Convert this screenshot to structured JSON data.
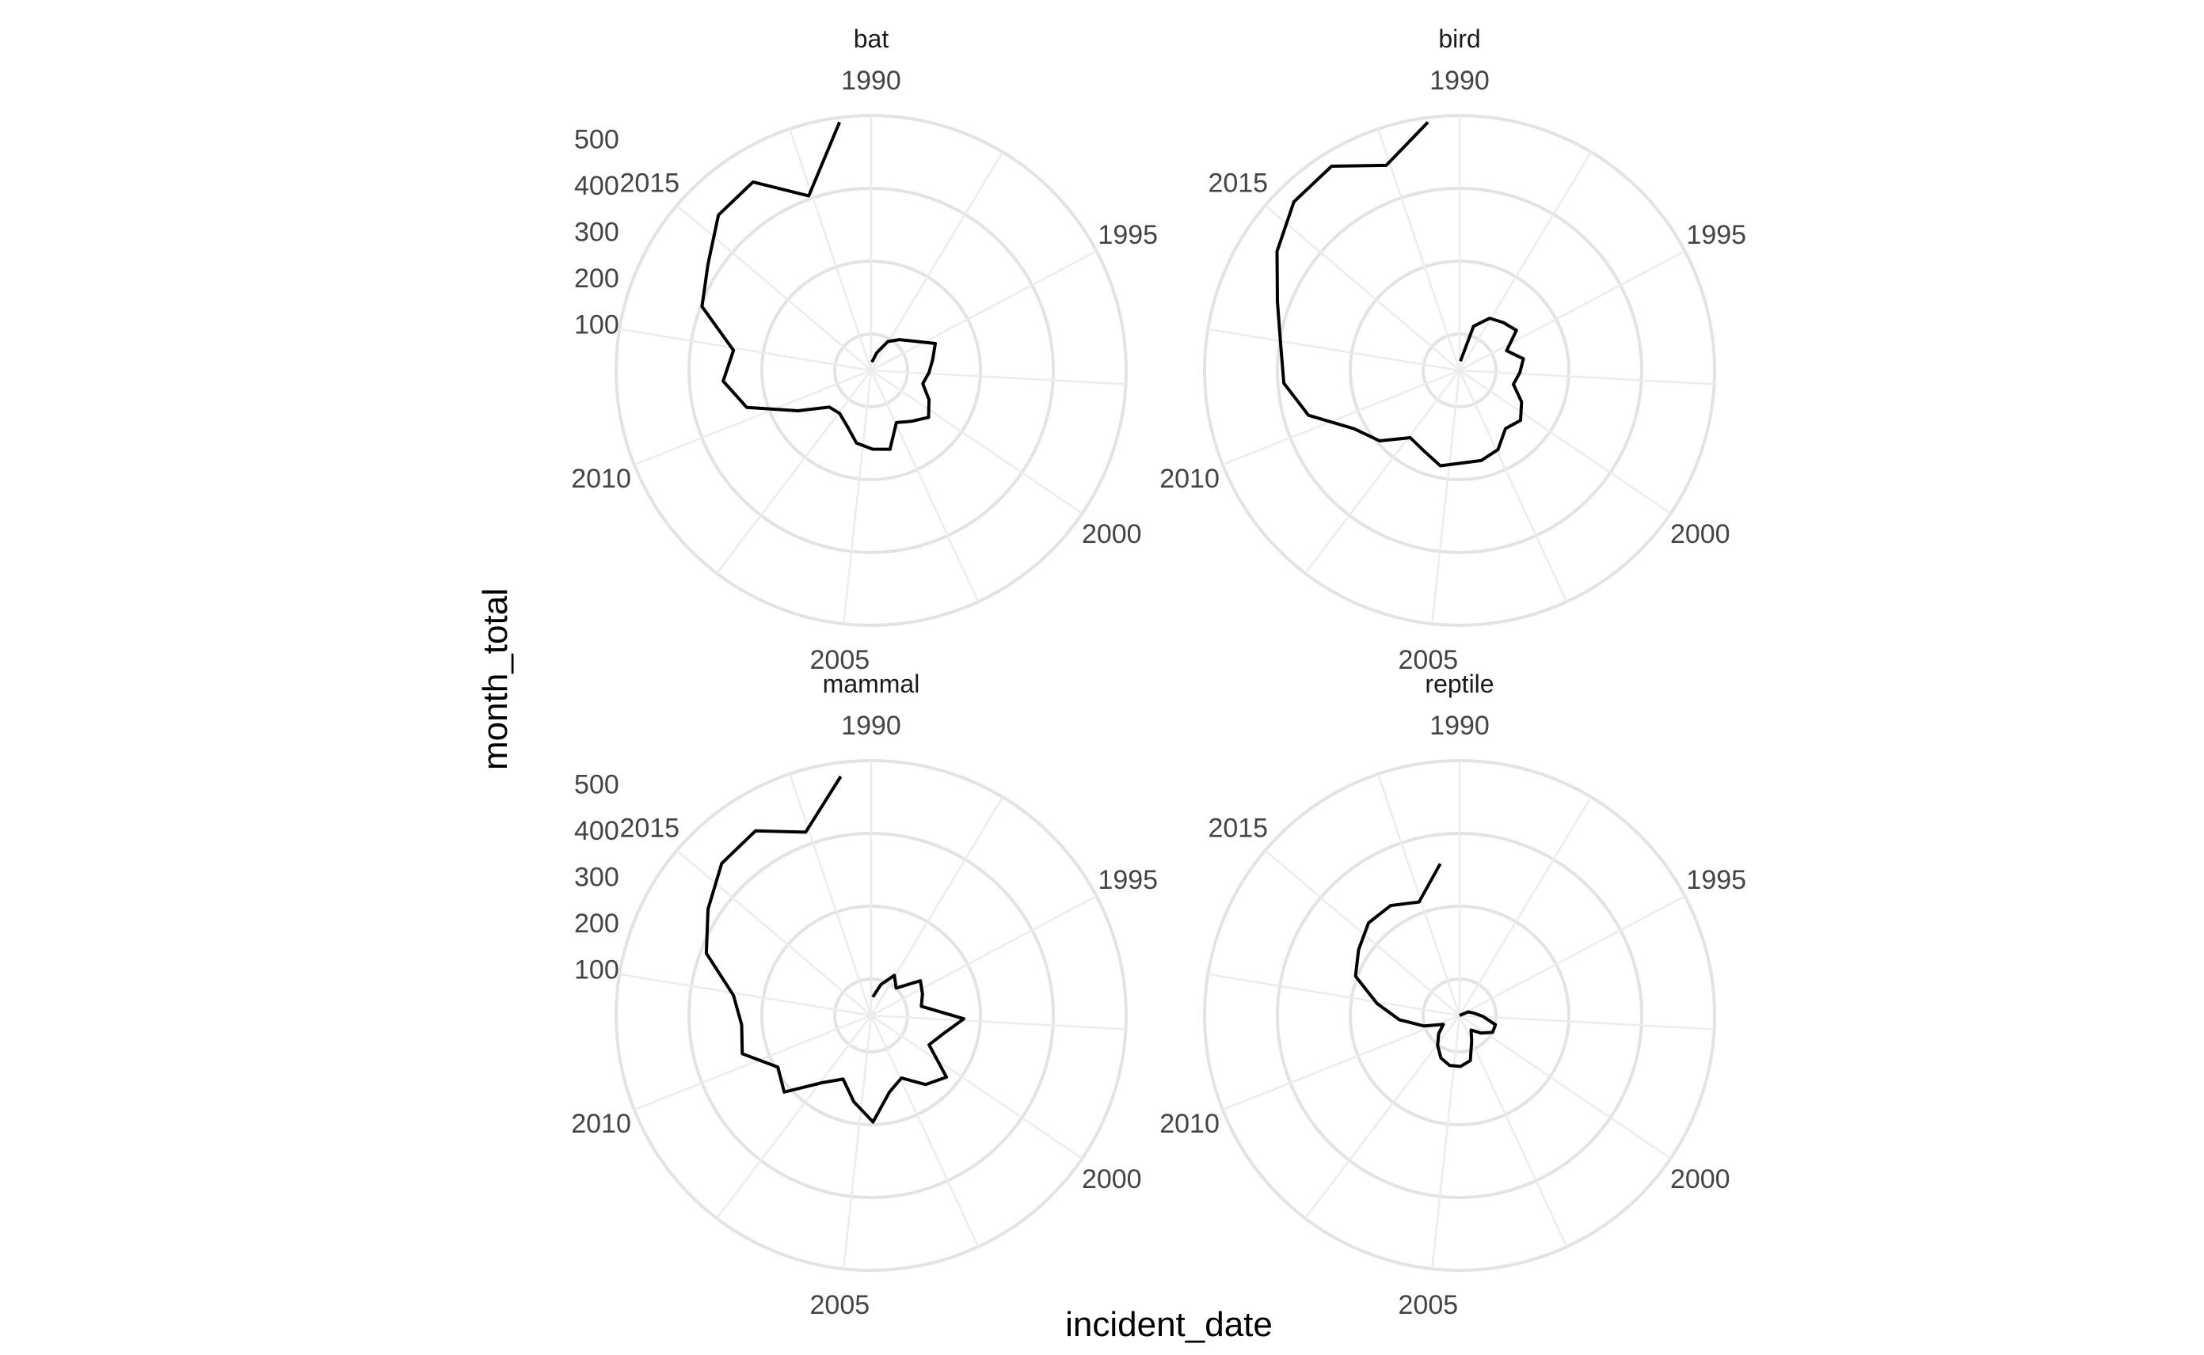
{
  "chart_data": {
    "type": "line",
    "coord": "polar",
    "xlabel": "incident_date",
    "ylabel": "month_total",
    "x_ticks": [
      "1990",
      "1995",
      "2000",
      "2005",
      "2010",
      "2015"
    ],
    "y_ticks": [
      "100",
      "200",
      "300",
      "400",
      "500"
    ],
    "ylim": [
      0,
      550
    ],
    "xlim": [
      "1990-01",
      "2018-12"
    ],
    "grid": true,
    "panels": [
      {
        "name": "bat",
        "x": [
          "1990-06",
          "1991-06",
          "1992-06",
          "1993-06",
          "1994-06",
          "1995-06",
          "1996-06",
          "1997-06",
          "1998-06",
          "1999-06",
          "2000-06",
          "2001-06",
          "2002-06",
          "2003-06",
          "2004-06",
          "2005-06",
          "2006-06",
          "2007-06",
          "2008-06",
          "2009-06",
          "2010-06",
          "2011-06",
          "2012-06",
          "2013-06",
          "2014-06",
          "2015-06",
          "2016-06",
          "2017-06",
          "2018-06"
        ],
        "values": [
          18,
          40,
          72,
          90,
          110,
          150,
          135,
          125,
          115,
          140,
          160,
          140,
          125,
          175,
          170,
          160,
          130,
          115,
          120,
          180,
          280,
          320,
          300,
          390,
          420,
          470,
          480,
          400,
          540
        ]
      },
      {
        "name": "bird",
        "x": [
          "1990-06",
          "1991-06",
          "1992-06",
          "1993-06",
          "1994-06",
          "1995-06",
          "1996-06",
          "1997-06",
          "1998-06",
          "1999-06",
          "2000-06",
          "2001-06",
          "2002-06",
          "2003-06",
          "2004-06",
          "2005-06",
          "2006-06",
          "2007-06",
          "2008-06",
          "2009-06",
          "2010-06",
          "2011-06",
          "2012-06",
          "2013-06",
          "2014-06",
          "2015-06",
          "2016-06",
          "2017-06",
          "2018-06"
        ],
        "values": [
          20,
          100,
          130,
          140,
          150,
          110,
          140,
          130,
          120,
          150,
          170,
          160,
          190,
          200,
          200,
          210,
          190,
          180,
          230,
          260,
          340,
          380,
          390,
          420,
          470,
          510,
          520,
          470,
          540
        ]
      },
      {
        "name": "mammal",
        "x": [
          "1990-06",
          "1991-06",
          "1992-06",
          "1993-06",
          "1994-06",
          "1995-06",
          "1996-06",
          "1997-06",
          "1998-06",
          "1999-06",
          "2000-06",
          "2001-06",
          "2002-06",
          "2003-06",
          "2004-06",
          "2005-06",
          "2006-06",
          "2007-06",
          "2008-06",
          "2009-06",
          "2010-06",
          "2011-06",
          "2012-06",
          "2013-06",
          "2014-06",
          "2015-06",
          "2016-06",
          "2017-06",
          "2018-06"
        ],
        "values": [
          40,
          70,
          100,
          80,
          130,
          120,
          110,
          200,
          160,
          140,
          210,
          190,
          150,
          170,
          230,
          190,
          150,
          180,
          250,
          230,
          290,
          280,
          300,
          380,
          420,
          460,
          470,
          420,
          520
        ]
      },
      {
        "name": "reptile",
        "x": [
          "1990-06",
          "1991-06",
          "1992-06",
          "1993-06",
          "1994-06",
          "1995-06",
          "1996-06",
          "1997-06",
          "1998-06",
          "1999-06",
          "2000-06",
          "2001-06",
          "2002-06",
          "2003-06",
          "2004-06",
          "2005-06",
          "2006-06",
          "2007-06",
          "2008-06",
          "2009-06",
          "2010-06",
          "2011-06",
          "2012-06",
          "2013-06",
          "2014-06",
          "2015-06",
          "2016-06",
          "2017-06",
          "2018-06"
        ],
        "values": [
          0,
          0,
          0,
          0,
          0,
          20,
          30,
          50,
          80,
          80,
          60,
          40,
          60,
          100,
          110,
          110,
          100,
          80,
          60,
          40,
          80,
          130,
          180,
          240,
          260,
          280,
          280,
          260,
          330
        ]
      }
    ]
  }
}
